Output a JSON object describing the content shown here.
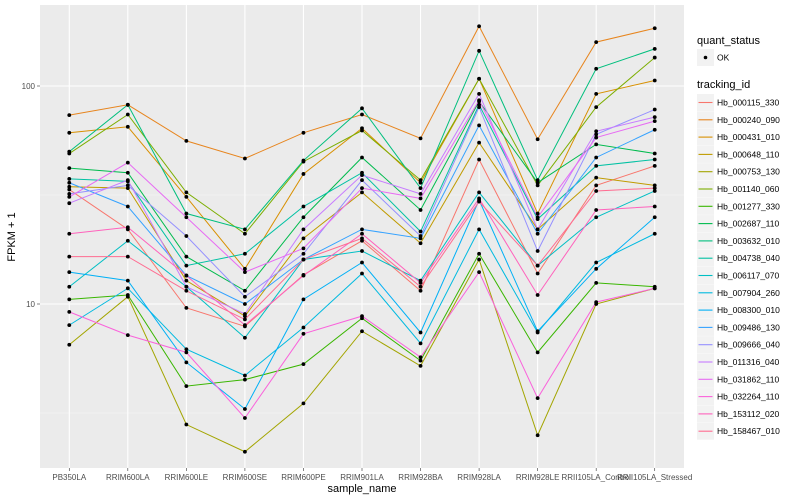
{
  "chart_data": {
    "type": "line",
    "title": "",
    "xlabel": "sample_name",
    "ylabel": "FPKM + 1",
    "y_scale": "log10",
    "ylim": [
      1.85,
      230
    ],
    "y_ticks": [
      10,
      100
    ],
    "y_tick_labels": [
      "10",
      "100"
    ],
    "grid": true,
    "legend_position": "right",
    "categories": [
      "PB350LA",
      "RRIM600LA",
      "RRIM600LE",
      "RRIM600SE",
      "RRIM600PE",
      "RRIM901LA",
      "RRIM928BA",
      "RRIM928LA",
      "RRIM928LE",
      "RRII105LA_Control",
      "RRII105LA_Stressed"
    ],
    "shape_legend": {
      "title": "quant_status",
      "entries": [
        {
          "label": "OK",
          "marker": "point"
        }
      ]
    },
    "color_legend_title": "tracking_id",
    "series": [
      {
        "name": "Hb_000115_330",
        "color": "#F8766D",
        "values": [
          33.5,
          22.0,
          9.6,
          7.9,
          13.6,
          19.5,
          11.5,
          46.0,
          13.8,
          35.0,
          43.0
        ]
      },
      {
        "name": "Hb_000240_090",
        "color": "#E7851E",
        "values": [
          73.5,
          82.0,
          56.0,
          46.5,
          61.0,
          74.0,
          57.5,
          188.0,
          57.0,
          159.0,
          184.0
        ]
      },
      {
        "name": "Hb_000431_010",
        "color": "#D89000",
        "values": [
          61.0,
          65.0,
          31.0,
          14.5,
          39.5,
          64.0,
          36.0,
          108.0,
          26.0,
          92.0,
          106.0
        ]
      },
      {
        "name": "Hb_000648_110",
        "color": "#C09B00",
        "values": [
          34.5,
          34.0,
          12.8,
          8.8,
          20.0,
          32.5,
          19.0,
          55.0,
          22.0,
          38.0,
          35.0
        ]
      },
      {
        "name": "Hb_000753_130",
        "color": "#A3A500",
        "values": [
          6.5,
          10.8,
          2.8,
          2.1,
          3.5,
          7.5,
          5.2,
          16.0,
          2.5,
          10.0,
          11.8
        ]
      },
      {
        "name": "Hb_001140_060",
        "color": "#7CAE00",
        "values": [
          49.0,
          74.0,
          32.5,
          21.0,
          45.0,
          62.5,
          37.0,
          108.0,
          35.0,
          80.0,
          135.0
        ]
      },
      {
        "name": "Hb_001277_330",
        "color": "#39B600",
        "values": [
          10.5,
          11.0,
          4.2,
          4.5,
          5.3,
          8.6,
          5.5,
          17.0,
          6.0,
          12.5,
          12.0
        ]
      },
      {
        "name": "Hb_002687_110",
        "color": "#00BB4E",
        "values": [
          42.0,
          40.0,
          16.5,
          11.5,
          25.0,
          47.0,
          27.0,
          85.0,
          36.0,
          54.0,
          49.0
        ]
      },
      {
        "name": "Hb_003632_010",
        "color": "#00BF7D",
        "values": [
          50.0,
          82.0,
          26.0,
          22.0,
          45.5,
          79.0,
          34.0,
          145.0,
          37.0,
          120.0,
          148.0
        ]
      },
      {
        "name": "Hb_004738_040",
        "color": "#00C1A3",
        "values": [
          37.5,
          36.5,
          15.0,
          17.0,
          28.0,
          40.0,
          21.5,
          82.0,
          24.5,
          43.0,
          46.0
        ]
      },
      {
        "name": "Hb_006117_070",
        "color": "#00BFC4",
        "values": [
          12.0,
          19.5,
          12.0,
          7.0,
          16.0,
          17.5,
          12.8,
          32.5,
          15.0,
          25.0,
          33.0
        ]
      },
      {
        "name": "Hb_007904_260",
        "color": "#00BAE0",
        "values": [
          8.0,
          11.8,
          6.2,
          4.7,
          7.8,
          13.8,
          6.6,
          22.0,
          7.4,
          15.5,
          21.0
        ]
      },
      {
        "name": "Hb_008300_010",
        "color": "#00B0F6",
        "values": [
          14.0,
          12.8,
          5.4,
          3.3,
          10.5,
          15.5,
          7.4,
          30.0,
          7.5,
          14.5,
          25.0
        ]
      },
      {
        "name": "Hb_009486_130",
        "color": "#35A2FF",
        "values": [
          36.0,
          28.0,
          13.5,
          10.0,
          16.0,
          22.0,
          20.0,
          66.0,
          21.0,
          47.0,
          63.0
        ]
      },
      {
        "name": "Hb_009666_040",
        "color": "#9590FF",
        "values": [
          32.0,
          35.0,
          20.5,
          10.8,
          17.0,
          37.0,
          20.5,
          80.0,
          17.5,
          60.0,
          78.0
        ]
      },
      {
        "name": "Hb_011316_040",
        "color": "#C77CFF",
        "values": [
          29.0,
          37.0,
          12.0,
          9.0,
          22.0,
          39.0,
          32.0,
          92.0,
          22.0,
          62.0,
          72.0
        ]
      },
      {
        "name": "Hb_031862_110",
        "color": "#E76BF3",
        "values": [
          31.0,
          44.5,
          25.0,
          14.0,
          18.0,
          34.0,
          30.5,
          86.0,
          25.0,
          58.0,
          69.0
        ]
      },
      {
        "name": "Hb_032264_110",
        "color": "#FA62DB",
        "values": [
          9.2,
          7.2,
          6.0,
          3.0,
          7.3,
          8.8,
          5.7,
          14.0,
          3.7,
          10.2,
          11.8
        ]
      },
      {
        "name": "Hb_153112_020",
        "color": "#FF62BC",
        "values": [
          21.0,
          22.5,
          13.5,
          8.0,
          13.5,
          21.0,
          12.5,
          30.5,
          11.0,
          27.0,
          28.0
        ]
      },
      {
        "name": "Hb_158467_010",
        "color": "#FF6C91",
        "values": [
          16.5,
          16.5,
          11.5,
          8.5,
          16.0,
          20.0,
          12.0,
          29.5,
          15.0,
          33.0,
          34.0
        ]
      },
      {
        "name": "Hb_000115_330_b",
        "color": "#F8766D",
        "hidden_in_legend": true,
        "values": []
      }
    ]
  }
}
